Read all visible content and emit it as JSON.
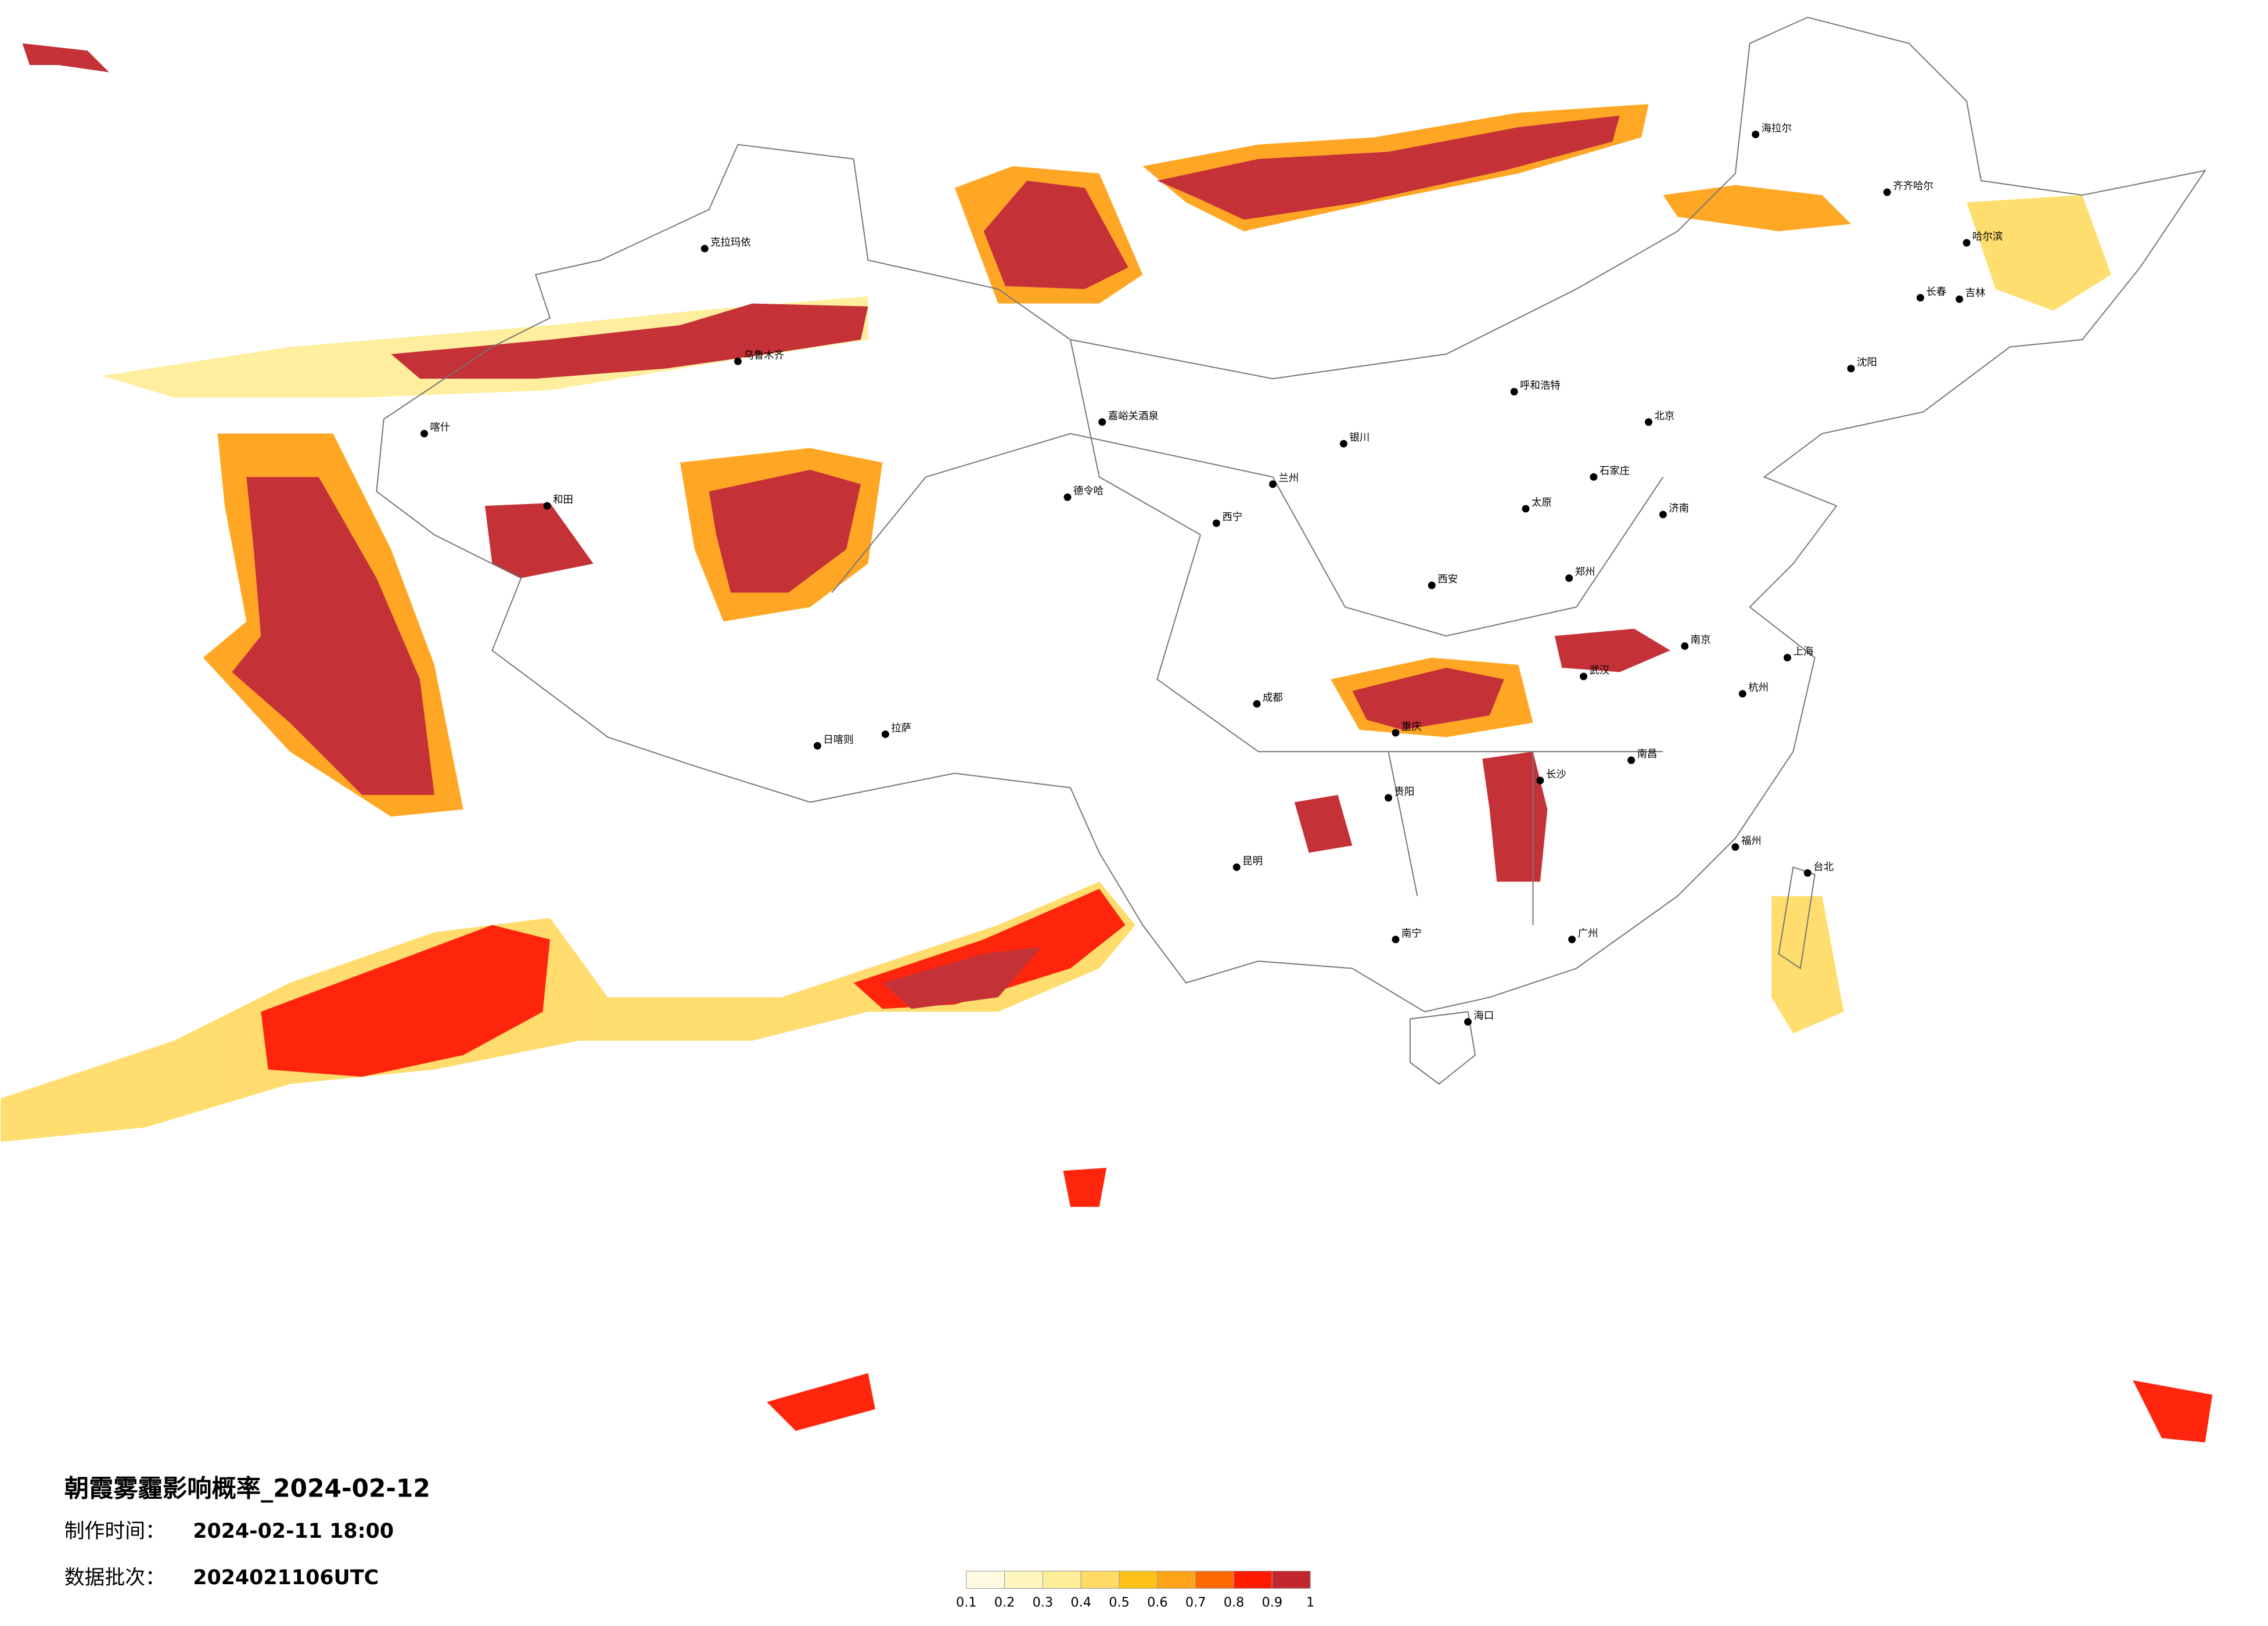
{
  "title": "朝霞雾霾影响概率_2024-02-12",
  "info": [
    {
      "label": "制作时间：",
      "value": "2024-02-11 18:00"
    },
    {
      "label": "数据批次：",
      "value": "2024021106UTC"
    }
  ],
  "legend": {
    "colors": [
      "#fffbe3",
      "#fff6bf",
      "#ffee99",
      "#ffdb66",
      "#ffc21a",
      "#ffa31a",
      "#ff6a00",
      "#ff1a00",
      "#c1272d"
    ],
    "ticks": [
      0.1,
      0.2,
      0.3,
      0.4,
      0.5,
      0.6,
      0.7,
      0.8,
      0.9,
      1
    ]
  },
  "cities": [
    "哈尔滨",
    "齐齐哈尔",
    "海拉尔",
    "长春",
    "吉林",
    "沈阳",
    "呼和浩特",
    "北京",
    "石家庄",
    "济南",
    "太原",
    "郑州",
    "西安",
    "兰州",
    "银川",
    "西宁",
    "成都",
    "重庆",
    "贵阳",
    "昆明",
    "南宁",
    "广州",
    "长沙",
    "武汉",
    "南昌",
    "福州",
    "杭州",
    "南京",
    "上海",
    "海口",
    "台北",
    "拉萨",
    "日喀则",
    "德令哈",
    "嘉峪关酒泉",
    "喀什",
    "和田",
    "克拉玛依",
    "乌鲁木齐"
  ]
}
